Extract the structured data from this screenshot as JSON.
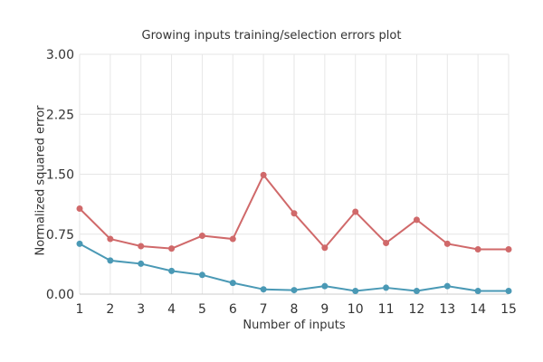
{
  "chart_data": {
    "type": "line",
    "title": "Growing inputs training/selection errors plot",
    "xlabel": "Number of inputs",
    "ylabel": "Normalized squared error",
    "x": [
      1,
      2,
      3,
      4,
      5,
      6,
      7,
      8,
      9,
      10,
      11,
      12,
      13,
      14,
      15
    ],
    "xticks": [
      "1",
      "2",
      "3",
      "4",
      "5",
      "6",
      "7",
      "8",
      "9",
      "10",
      "11",
      "12",
      "13",
      "14",
      "15"
    ],
    "yticks": [
      "0.00",
      "0.75",
      "1.50",
      "2.25",
      "3.00"
    ],
    "ylim": [
      0,
      3.0
    ],
    "xlim": [
      1,
      15
    ],
    "grid": true,
    "series": [
      {
        "color": "#d0696a",
        "values": [
          1.07,
          0.69,
          0.6,
          0.57,
          0.73,
          0.69,
          1.49,
          1.01,
          0.58,
          1.03,
          0.64,
          0.93,
          0.63,
          0.56,
          0.56
        ]
      },
      {
        "color": "#4a99b5",
        "values": [
          0.63,
          0.42,
          0.38,
          0.29,
          0.24,
          0.14,
          0.06,
          0.05,
          0.1,
          0.04,
          0.08,
          0.04,
          0.1,
          0.04,
          0.04
        ]
      }
    ]
  }
}
